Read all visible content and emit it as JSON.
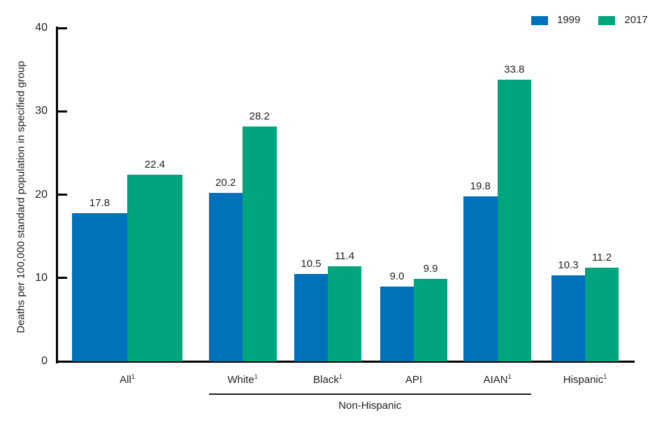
{
  "chart_data": {
    "type": "bar",
    "title": "",
    "xlabel": "",
    "ylabel": "Deaths per 100,000 standard population in specified group",
    "ylim": [
      0,
      40
    ],
    "yticks": [
      0,
      10,
      20,
      30,
      40
    ],
    "grid": false,
    "legend_position": "top-right",
    "value_labels_decimals": 1,
    "categories": [
      {
        "label": "All",
        "sup": "1"
      },
      {
        "label": "White",
        "sup": "1"
      },
      {
        "label": "Black",
        "sup": "1"
      },
      {
        "label": "API",
        "sup": ""
      },
      {
        "label": "AIAN",
        "sup": "1"
      },
      {
        "label": "Hispanic",
        "sup": "1"
      }
    ],
    "series": [
      {
        "name": "1999",
        "color": "#0072BC",
        "values": [
          17.8,
          20.2,
          10.5,
          9.0,
          19.8,
          10.3
        ]
      },
      {
        "name": "2017",
        "color": "#00A57E",
        "values": [
          22.4,
          28.2,
          11.4,
          9.9,
          33.8,
          11.2
        ]
      }
    ],
    "group_annotation": {
      "label": "Non-Hispanic",
      "from_category": 1,
      "to_category": 4
    }
  },
  "colors": {
    "axis": "#000000",
    "text": "#231f20"
  }
}
